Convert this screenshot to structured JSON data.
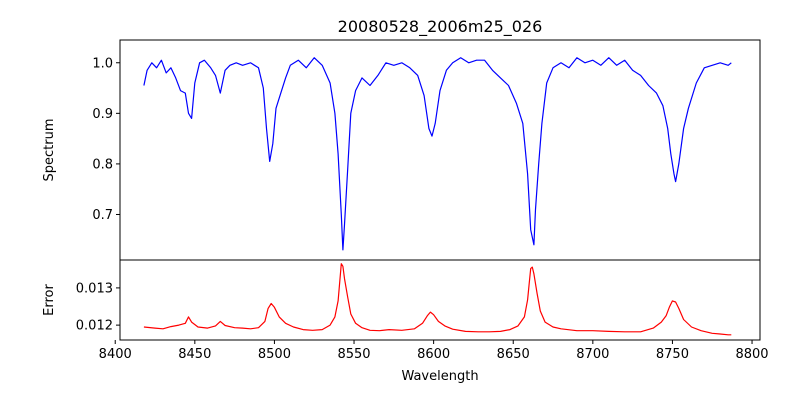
{
  "figure": {
    "title": "20080528_2006m25_026",
    "xlabel": "Wavelength"
  },
  "chart_data": [
    {
      "type": "line",
      "panel": "top",
      "title": "20080528_2006m25_026",
      "xlabel": "",
      "ylabel": "Spectrum",
      "xlim": [
        8403,
        8805
      ],
      "ylim": [
        0.61,
        1.045
      ],
      "yticks": [
        0.7,
        0.8,
        0.9,
        1.0
      ],
      "yticklabels": [
        "0.7",
        "0.8",
        "0.9",
        "1.0"
      ],
      "color": "#0000ff",
      "series": [
        {
          "x": [
            8418,
            8420,
            8423,
            8426,
            8429,
            8432,
            8435,
            8438,
            8441,
            8444,
            8446,
            8448,
            8450,
            8453,
            8456,
            8460,
            8463,
            8466,
            8469,
            8472,
            8476,
            8480,
            8485,
            8490,
            8493,
            8495,
            8497,
            8499,
            8501,
            8504,
            8507,
            8510,
            8515,
            8520,
            8525,
            8530,
            8535,
            8538,
            8540,
            8542,
            8543,
            8544,
            8546,
            8548,
            8551,
            8555,
            8560,
            8565,
            8570,
            8575,
            8580,
            8585,
            8590,
            8594,
            8597,
            8599,
            8601,
            8604,
            8608,
            8612,
            8617,
            8622,
            8627,
            8632,
            8637,
            8642,
            8647,
            8652,
            8656,
            8659,
            8661,
            8663,
            8664,
            8666,
            8668,
            8671,
            8675,
            8680,
            8685,
            8690,
            8695,
            8700,
            8705,
            8710,
            8715,
            8720,
            8725,
            8730,
            8735,
            8740,
            8744,
            8747,
            8749,
            8751,
            8752,
            8754,
            8757,
            8760,
            8765,
            8770,
            8775,
            8780,
            8785,
            8787
          ],
          "y": [
            0.955,
            0.985,
            1.0,
            0.99,
            1.005,
            0.98,
            0.99,
            0.97,
            0.945,
            0.94,
            0.9,
            0.89,
            0.96,
            1.0,
            1.005,
            0.99,
            0.975,
            0.94,
            0.985,
            0.995,
            1.0,
            0.995,
            1.0,
            0.99,
            0.95,
            0.87,
            0.805,
            0.84,
            0.91,
            0.94,
            0.97,
            0.995,
            1.005,
            0.99,
            1.01,
            0.995,
            0.96,
            0.9,
            0.82,
            0.7,
            0.63,
            0.68,
            0.79,
            0.9,
            0.945,
            0.97,
            0.955,
            0.975,
            1.0,
            0.995,
            1.0,
            0.99,
            0.975,
            0.935,
            0.87,
            0.855,
            0.88,
            0.945,
            0.985,
            1.0,
            1.01,
            1.0,
            1.005,
            1.005,
            0.985,
            0.97,
            0.955,
            0.92,
            0.88,
            0.78,
            0.67,
            0.64,
            0.71,
            0.8,
            0.88,
            0.96,
            0.99,
            1.0,
            0.99,
            1.01,
            1.0,
            1.005,
            0.995,
            1.01,
            0.995,
            1.005,
            0.985,
            0.975,
            0.955,
            0.94,
            0.915,
            0.87,
            0.82,
            0.78,
            0.765,
            0.8,
            0.87,
            0.91,
            0.96,
            0.99,
            0.995,
            1.0,
            0.995,
            1.0
          ]
        }
      ]
    },
    {
      "type": "line",
      "panel": "bottom",
      "xlabel": "Wavelength",
      "ylabel": "Error",
      "xlim": [
        8403,
        8805
      ],
      "ylim": [
        0.0116,
        0.01375
      ],
      "yticks": [
        0.012,
        0.013
      ],
      "yticklabels": [
        "0.012",
        "0.013"
      ],
      "xticks": [
        8400,
        8450,
        8500,
        8550,
        8600,
        8650,
        8700,
        8750,
        8800
      ],
      "xticklabels": [
        "8400",
        "8450",
        "8500",
        "8550",
        "8600",
        "8650",
        "8700",
        "8750",
        "8800"
      ],
      "color": "#ff0000",
      "series": [
        {
          "x": [
            8418,
            8425,
            8430,
            8435,
            8440,
            8444,
            8446,
            8448,
            8452,
            8458,
            8463,
            8466,
            8469,
            8475,
            8480,
            8485,
            8490,
            8494,
            8496,
            8498,
            8500,
            8503,
            8507,
            8512,
            8518,
            8524,
            8530,
            8535,
            8538,
            8540,
            8541,
            8542,
            8543,
            8544,
            8546,
            8548,
            8551,
            8555,
            8560,
            8566,
            8572,
            8580,
            8588,
            8593,
            8596,
            8598,
            8600,
            8603,
            8607,
            8612,
            8620,
            8628,
            8635,
            8642,
            8648,
            8653,
            8657,
            8659,
            8660,
            8661,
            8662,
            8663,
            8665,
            8667,
            8670,
            8675,
            8680,
            8690,
            8700,
            8710,
            8720,
            8730,
            8738,
            8743,
            8746,
            8748,
            8750,
            8752,
            8754,
            8757,
            8762,
            8768,
            8775,
            8780,
            8785,
            8787
          ],
          "y": [
            0.01195,
            0.01192,
            0.0119,
            0.01196,
            0.012,
            0.01205,
            0.01222,
            0.01208,
            0.01195,
            0.01192,
            0.01198,
            0.0121,
            0.01199,
            0.01193,
            0.01192,
            0.0119,
            0.01193,
            0.0121,
            0.01245,
            0.01258,
            0.01248,
            0.01222,
            0.01205,
            0.01195,
            0.01188,
            0.01186,
            0.01188,
            0.012,
            0.01222,
            0.01265,
            0.01315,
            0.01365,
            0.01358,
            0.01325,
            0.01275,
            0.0123,
            0.01205,
            0.01193,
            0.01186,
            0.01185,
            0.01188,
            0.01186,
            0.0119,
            0.01205,
            0.01225,
            0.01235,
            0.01228,
            0.0121,
            0.01198,
            0.01189,
            0.01183,
            0.01182,
            0.01182,
            0.01183,
            0.01188,
            0.01198,
            0.01222,
            0.01268,
            0.01312,
            0.01352,
            0.01356,
            0.01338,
            0.01285,
            0.01238,
            0.01208,
            0.01195,
            0.0119,
            0.01185,
            0.01185,
            0.01183,
            0.01182,
            0.01182,
            0.01192,
            0.01208,
            0.01225,
            0.01248,
            0.01265,
            0.01262,
            0.01245,
            0.01215,
            0.01195,
            0.01185,
            0.01178,
            0.01176,
            0.01174,
            0.01174
          ]
        }
      ]
    }
  ]
}
